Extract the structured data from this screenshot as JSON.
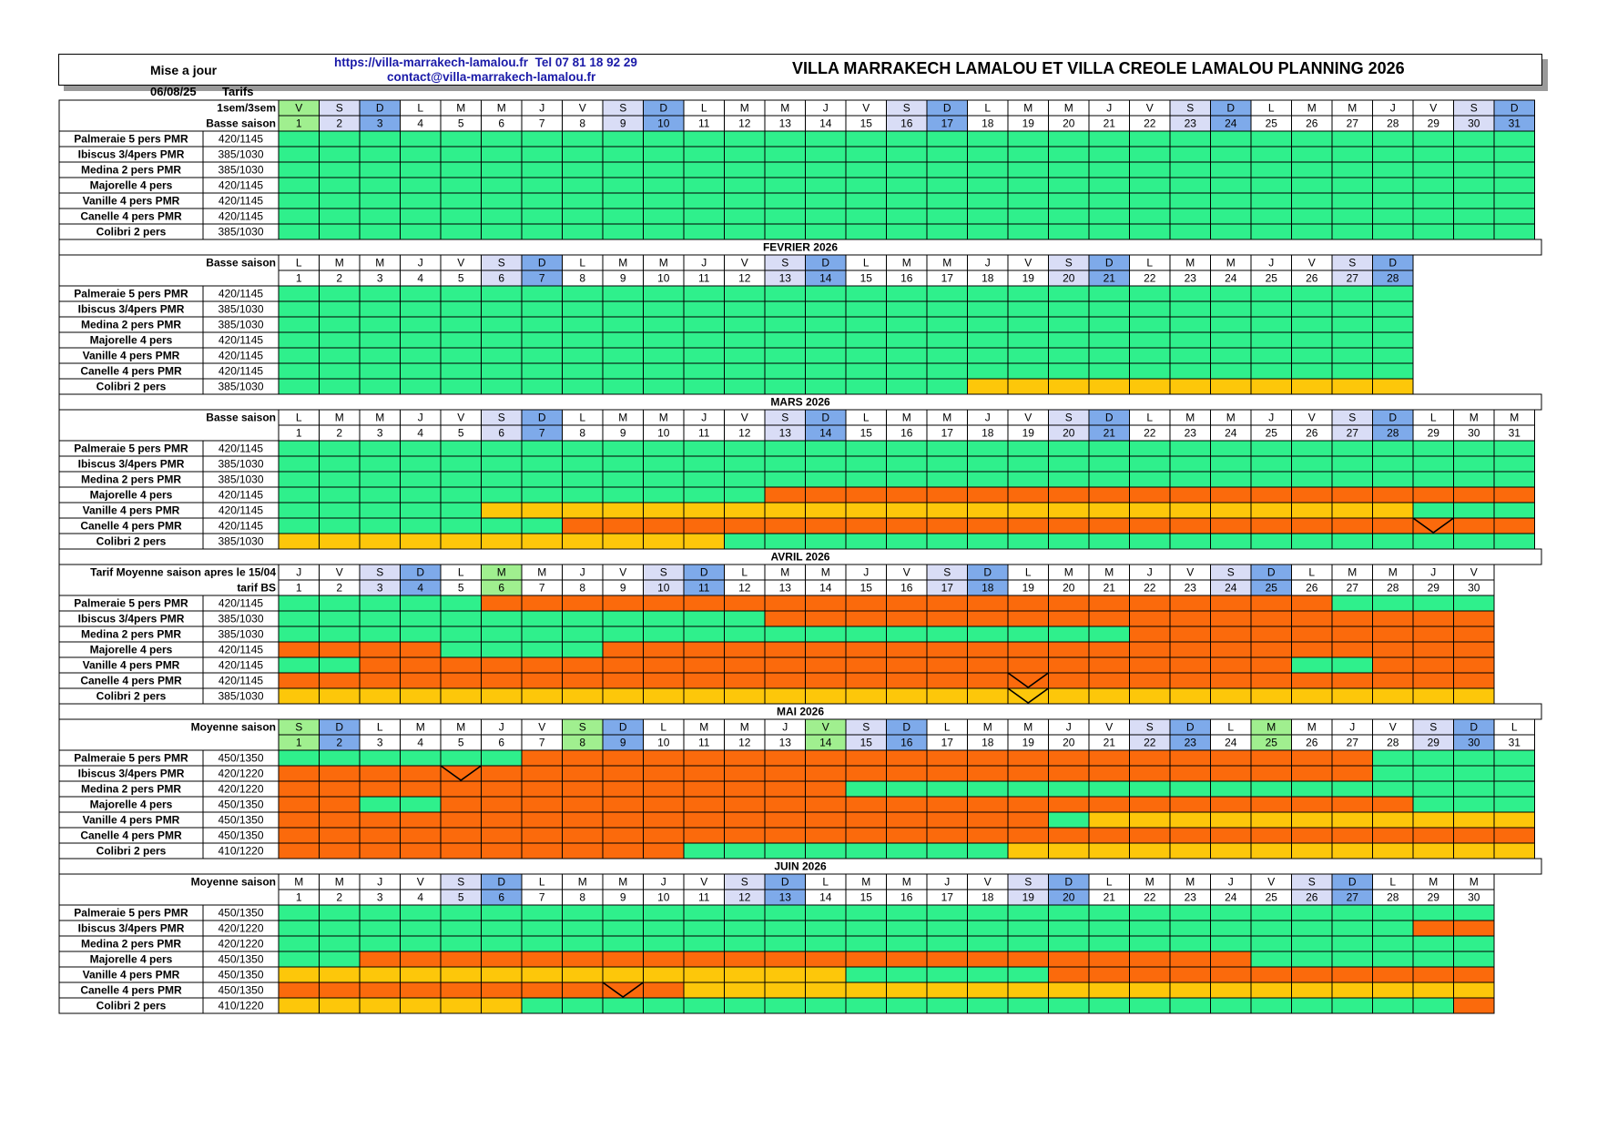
{
  "header": {
    "update_label": "Mise a jour",
    "update_date": "06/08/25",
    "tarifs_label": "Tarifs",
    "url": "https://villa-marrakech-lamalou.fr",
    "phone": "Tel 07 81 18 92 29",
    "email": "contact@villa-marrakech-lamalou.fr",
    "title": "VILLA MARRAKECH LAMALOU ET VILLA CREOLE LAMALOU PLANNING 2026"
  },
  "legend_colors": {
    "G": "#2ff08c",
    "O": "#fb6a0c",
    "Y": "#fdc70a",
    "day_weekend": "#d9ddf6",
    "day_sunday": "#7eaaea",
    "day_holiday": "#a0ef8f"
  },
  "months": [
    {
      "title": "",
      "label1": "1sem/3sem",
      "label2": "Basse saison",
      "first_weekday": 4,
      "days": 31,
      "holidays": [
        1
      ],
      "rooms": [
        {
          "name": "Palmeraie 5 pers PMR",
          "price": "420/1145",
          "cells": "G31"
        },
        {
          "name": "Ibiscus 3/4pers PMR",
          "price": "385/1030",
          "cells": "G31"
        },
        {
          "name": "Medina 2 pers PMR",
          "price": "385/1030",
          "cells": "G31"
        },
        {
          "name": "Majorelle 4 pers",
          "price": "420/1145",
          "cells": "G31"
        },
        {
          "name": "Vanille 4 pers PMR",
          "price": "420/1145",
          "cells": "G31"
        },
        {
          "name": "Canelle 4 pers PMR",
          "price": "420/1145",
          "cells": "G31"
        },
        {
          "name": "Colibri 2 pers",
          "price": "385/1030",
          "cells": "G31"
        }
      ],
      "marks": []
    },
    {
      "title": "FEVRIER 2026",
      "label1": "Basse saison",
      "label2": "",
      "first_weekday": 0,
      "days": 28,
      "holidays": [],
      "rooms": [
        {
          "name": "Palmeraie 5 pers PMR",
          "price": "420/1145",
          "cells": "G28"
        },
        {
          "name": "Ibiscus 3/4pers PMR",
          "price": "385/1030",
          "cells": "G28"
        },
        {
          "name": "Medina 2 pers PMR",
          "price": "385/1030",
          "cells": "G28"
        },
        {
          "name": "Majorelle 4 pers",
          "price": "420/1145",
          "cells": "G28"
        },
        {
          "name": "Vanille 4 pers PMR",
          "price": "420/1145",
          "cells": "G28"
        },
        {
          "name": "Canelle 4 pers PMR",
          "price": "420/1145",
          "cells": "G28"
        },
        {
          "name": "Colibri 2 pers",
          "price": "385/1030",
          "cells": "G17 Y11"
        }
      ],
      "marks": []
    },
    {
      "title": "MARS 2026",
      "label1": "Basse saison",
      "label2": "",
      "first_weekday": 0,
      "days": 31,
      "holidays": [],
      "rooms": [
        {
          "name": "Palmeraie 5 pers PMR",
          "price": "420/1145",
          "cells": "G31"
        },
        {
          "name": "Ibiscus 3/4pers PMR",
          "price": "385/1030",
          "cells": "G31"
        },
        {
          "name": "Medina 2 pers PMR",
          "price": "385/1030",
          "cells": "G31"
        },
        {
          "name": "Majorelle 4 pers",
          "price": "420/1145",
          "cells": "G12 O19"
        },
        {
          "name": "Vanille 4 pers PMR",
          "price": "420/1145",
          "cells": "G5 Y23 G3"
        },
        {
          "name": "Canelle 4 pers PMR",
          "price": "420/1145",
          "cells": "G7 O24"
        },
        {
          "name": "Colibri 2 pers",
          "price": "385/1030",
          "cells": "Y11 G20"
        }
      ],
      "marks": [
        {
          "row": 5,
          "day": 29
        }
      ]
    },
    {
      "title": "AVRIL 2026",
      "label1": "Tarif Moyenne saison apres le 15/04",
      "label2": "tarif BS",
      "first_weekday": 3,
      "days": 30,
      "holidays": [
        6
      ],
      "rooms": [
        {
          "name": "Palmeraie 5 pers PMR",
          "price": "420/1145",
          "cells": "G5 O21 G4"
        },
        {
          "name": "Ibiscus 3/4pers PMR",
          "price": "385/1030",
          "cells": "G12 O18"
        },
        {
          "name": "Medina 2 pers PMR",
          "price": "385/1030",
          "cells": "G21 O9"
        },
        {
          "name": "Majorelle 4 pers",
          "price": "420/1145",
          "cells": "O4 G4 O22"
        },
        {
          "name": "Vanille 4 pers PMR",
          "price": "420/1145",
          "cells": "G2 O23 G2 O3"
        },
        {
          "name": "Canelle 4 pers PMR",
          "price": "420/1145",
          "cells": "O30"
        },
        {
          "name": "Colibri 2 pers",
          "price": "385/1030",
          "cells": "Y30"
        }
      ],
      "marks": [
        {
          "row": 5,
          "day": 19
        },
        {
          "row": 6,
          "day": 19
        }
      ]
    },
    {
      "title": "MAI 2026",
      "label1": "Moyenne saison",
      "label2": "",
      "first_weekday": 5,
      "days": 31,
      "holidays": [
        1,
        8,
        14,
        25
      ],
      "rooms": [
        {
          "name": "Palmeraie 5 pers PMR",
          "price": "450/1350",
          "cells": "G6 O21 G4"
        },
        {
          "name": "Ibiscus 3/4pers PMR",
          "price": "420/1220",
          "cells": "O27 G4"
        },
        {
          "name": "Medina 2 pers PMR",
          "price": "420/1220",
          "cells": "O14 G17"
        },
        {
          "name": "Majorelle 4 pers",
          "price": "450/1350",
          "cells": "O2 G2 O24 G3"
        },
        {
          "name": "Vanille 4 pers PMR",
          "price": "450/1350",
          "cells": "O19 G1 Y11"
        },
        {
          "name": "Canelle 4 pers PMR",
          "price": "450/1350",
          "cells": "O31"
        },
        {
          "name": "Colibri 2 pers",
          "price": "410/1220",
          "cells": "O10 G8 Y13"
        }
      ],
      "marks": [
        {
          "row": 1,
          "day": 5
        }
      ]
    },
    {
      "title": "JUIN 2026",
      "label1": "Moyenne saison",
      "label2": "",
      "first_weekday": 1,
      "days": 30,
      "holidays": [],
      "rooms": [
        {
          "name": "Palmeraie 5 pers PMR",
          "price": "450/1350",
          "cells": "G30"
        },
        {
          "name": "Ibiscus 3/4pers PMR",
          "price": "420/1220",
          "cells": "G28 O2"
        },
        {
          "name": "Medina 2 pers PMR",
          "price": "420/1220",
          "cells": "G30"
        },
        {
          "name": "Majorelle 4 pers",
          "price": "450/1350",
          "cells": "G2 O22 G6"
        },
        {
          "name": "Vanille 4 pers PMR",
          "price": "450/1350",
          "cells": "Y14 G5 O11"
        },
        {
          "name": "Canelle 4 pers PMR",
          "price": "450/1350",
          "cells": "O10 Y20"
        },
        {
          "name": "Colibri 2 pers",
          "price": "410/1220",
          "cells": "Y6 G23 O1"
        }
      ],
      "marks": [
        {
          "row": 5,
          "day": 9
        }
      ]
    }
  ]
}
